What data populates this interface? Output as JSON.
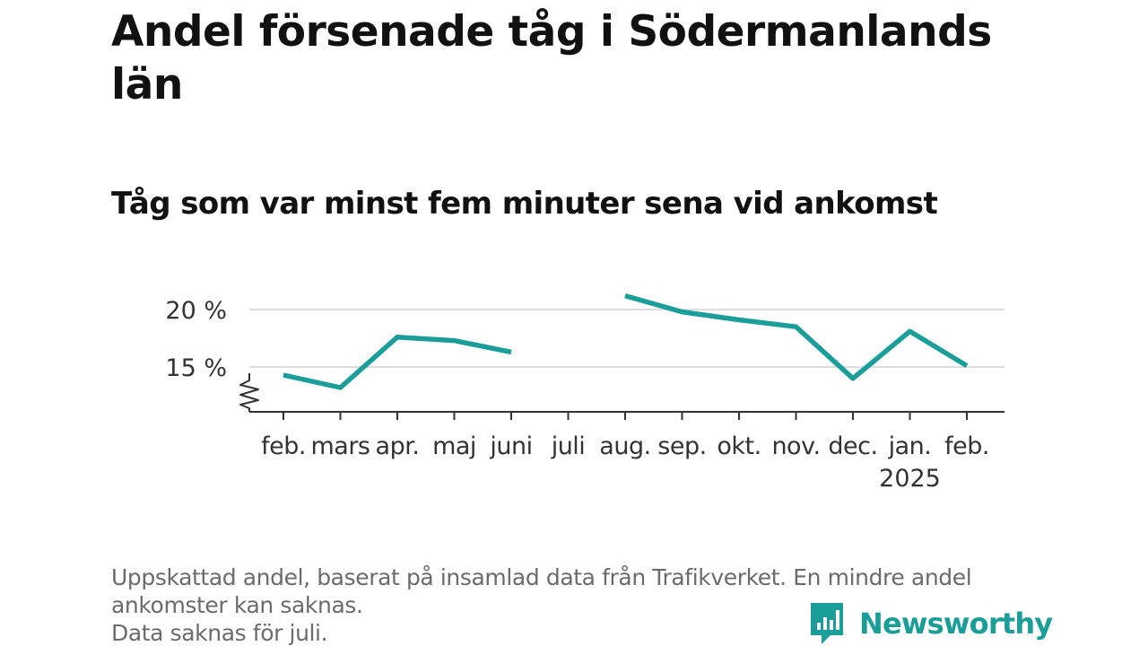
{
  "title": "Andel försenade tåg i Södermanlands län",
  "subtitle": "Tåg som var minst fem minuter sena vid ankomst",
  "footnote": {
    "line1": "Uppskattad andel, baserat på insamlad data från Trafikverket. En mindre andel ankomster kan saknas.",
    "line2": "Data saknas för juli."
  },
  "brand": {
    "name": "Newsworthy",
    "icon": "bar-chart-speech-bubble-icon",
    "color": "#1b9e99"
  },
  "chart_data": {
    "type": "line",
    "categories": [
      "feb.",
      "mars",
      "apr.",
      "maj",
      "juni",
      "juli",
      "aug.",
      "sep.",
      "okt.",
      "nov.",
      "dec.",
      "jan.",
      "feb."
    ],
    "year_labels": [
      {
        "category_index": 11,
        "label": "2025"
      }
    ],
    "series": [
      {
        "values": [
          14.3,
          13.2,
          17.6,
          17.3,
          16.3,
          null,
          21.2,
          19.8,
          19.1,
          18.5,
          14.0,
          18.1,
          15.1
        ],
        "color": "#1b9e99"
      }
    ],
    "y_ticks": [
      15,
      20
    ],
    "y_tick_format": "{v} %",
    "ylim": [
      11.2,
      22
    ],
    "axis_break": true,
    "grid": true,
    "xlabel": "",
    "ylabel": ""
  }
}
